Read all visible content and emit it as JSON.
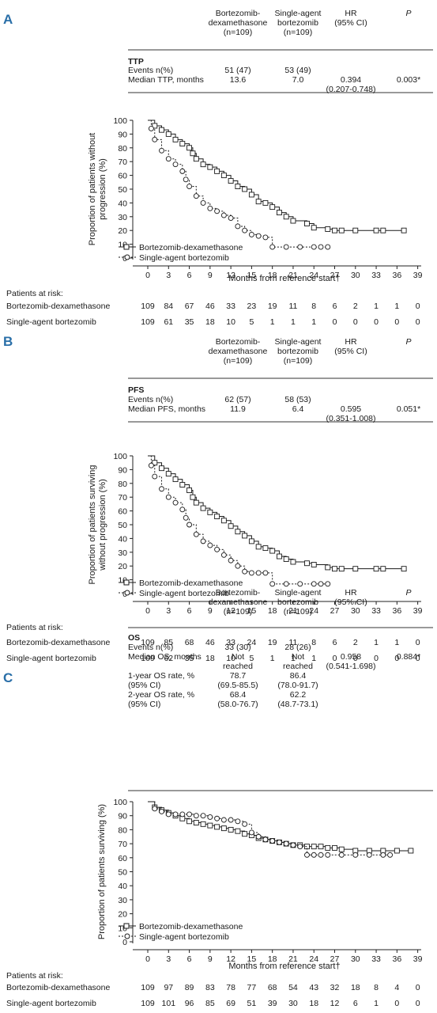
{
  "panels": [
    {
      "letter": "A",
      "table": {
        "headers": [
          [
            "Bortezomib-",
            "dexamethasone",
            "(n=109)"
          ],
          [
            "Single-agent",
            "bortezomib",
            "(n=109)"
          ],
          [
            "HR",
            "(95% CI)"
          ],
          [
            "P"
          ]
        ],
        "section": "TTP",
        "rows": [
          {
            "label": "Events n(%)",
            "c1": [
              "51 (47)"
            ],
            "c2": [
              "53 (49)"
            ],
            "hr": [
              ""
            ],
            "p": ""
          },
          {
            "label": "Median TTP, months",
            "c1": [
              "13.6"
            ],
            "c2": [
              "7.0"
            ],
            "hr": [
              "0.394",
              "(0.207-0.748)"
            ],
            "p": "0.003*"
          }
        ]
      },
      "chart_data": {
        "type": "line",
        "ylabel": "Proportion of patients without progression (%)",
        "xlabel": "Months from reference start†",
        "xticks": [
          0,
          3,
          6,
          9,
          12,
          15,
          18,
          21,
          24,
          27,
          30,
          33,
          36,
          39
        ],
        "yticks": [
          0,
          10,
          20,
          30,
          40,
          50,
          60,
          70,
          80,
          90,
          100
        ],
        "xlim": [
          -0.8,
          39.5
        ],
        "ylim": [
          0,
          100
        ],
        "series": [
          {
            "name": "Bortezomib-dexamethasone",
            "style": "solid",
            "marker": "square",
            "x": [
              0,
              1,
              2,
              3,
              4,
              5,
              6,
              6.5,
              7,
              8,
              9,
              10,
              11,
              12,
              13,
              14,
              15,
              16,
              17,
              18,
              19,
              20,
              21,
              23,
              24,
              26,
              27,
              28,
              30,
              33,
              34,
              37
            ],
            "y": [
              100,
              96,
              93,
              90,
              86,
              83,
              80,
              76,
              72,
              68,
              66,
              63,
              60,
              56,
              52,
              50,
              46,
              41,
              40,
              37,
              33,
              30,
              27,
              25,
              22,
              21,
              20,
              20,
              20,
              20,
              20,
              20
            ]
          },
          {
            "name": "Single-agent bortezomib",
            "style": "dotted",
            "marker": "circle",
            "x": [
              0,
              0.5,
              1,
              2,
              3,
              4,
              5,
              5.5,
              6,
              7,
              8,
              9,
              10,
              11,
              12,
              13,
              14,
              15,
              16,
              17,
              18,
              20,
              22,
              24,
              25,
              26
            ],
            "y": [
              100,
              94,
              86,
              78,
              72,
              68,
              63,
              57,
              52,
              45,
              40,
              36,
              34,
              31,
              29,
              23,
              20,
              17,
              16,
              15,
              8,
              8,
              8,
              8,
              8,
              8
            ]
          }
        ]
      },
      "risk": {
        "title": "Patients at risk:",
        "rows": [
          {
            "label": "Bortezomib-dexamethasone",
            "values": [
              "109",
              "84",
              "67",
              "46",
              "33",
              "23",
              "19",
              "11",
              "8",
              "6",
              "2",
              "1",
              "1",
              "0"
            ]
          },
          {
            "label": "Single-agent bortezomib",
            "values": [
              "109",
              "61",
              "35",
              "18",
              "10",
              "5",
              "1",
              "1",
              "1",
              "0",
              "0",
              "0",
              "0",
              "0"
            ]
          }
        ]
      }
    },
    {
      "letter": "B",
      "table": {
        "headers": [
          [
            "Bortezomib-",
            "dexamethasone",
            "(n=109)"
          ],
          [
            "Single-agent",
            "bortezomib",
            "(n=109)"
          ],
          [
            "HR",
            "(95% CI)"
          ],
          [
            "P"
          ]
        ],
        "section": "PFS",
        "rows": [
          {
            "label": "Events n(%)",
            "c1": [
              "62 (57)"
            ],
            "c2": [
              "58 (53)"
            ],
            "hr": [
              ""
            ],
            "p": ""
          },
          {
            "label": "Median PFS, months",
            "c1": [
              "11.9"
            ],
            "c2": [
              "6.4"
            ],
            "hr": [
              "0.595",
              "(0.351-1.008)"
            ],
            "p": "0.051*"
          }
        ]
      },
      "chart_data": {
        "type": "line",
        "ylabel": "Proportion of patients surviving without progression (%)",
        "xlabel": "",
        "xticks": [
          0,
          3,
          6,
          9,
          12,
          15,
          18,
          21,
          24,
          27,
          30,
          33,
          36,
          39
        ],
        "yticks": [
          0,
          10,
          20,
          30,
          40,
          50,
          60,
          70,
          80,
          90,
          100
        ],
        "xlim": [
          -0.8,
          39.5
        ],
        "ylim": [
          0,
          100
        ],
        "series": [
          {
            "name": "Bortezomib-dexamethasone",
            "style": "solid",
            "marker": "square",
            "x": [
              0,
              1,
              2,
              3,
              4,
              5,
              6,
              6.5,
              7,
              8,
              9,
              10,
              11,
              12,
              13,
              14,
              15,
              16,
              17,
              18,
              19,
              20,
              21,
              23,
              24,
              26,
              27,
              28,
              30,
              33,
              34,
              37
            ],
            "y": [
              100,
              95,
              91,
              87,
              83,
              79,
              75,
              70,
              66,
              62,
              59,
              56,
              53,
              49,
              45,
              42,
              38,
              34,
              33,
              31,
              27,
              25,
              23,
              22,
              21,
              19,
              18,
              18,
              18,
              18,
              18,
              18
            ]
          },
          {
            "name": "Single-agent bortezomib",
            "style": "dotted",
            "marker": "circle",
            "x": [
              0,
              0.5,
              1,
              2,
              3,
              4,
              5,
              5.5,
              6,
              7,
              8,
              9,
              10,
              11,
              12,
              13,
              14,
              15,
              16,
              17,
              18,
              20,
              22,
              24,
              25,
              26
            ],
            "y": [
              100,
              93,
              85,
              76,
              70,
              66,
              61,
              55,
              50,
              43,
              38,
              35,
              32,
              28,
              24,
              20,
              16,
              15,
              15,
              15,
              7,
              7,
              7,
              7,
              7,
              7
            ]
          }
        ]
      },
      "risk": {
        "title": "Patients at risk:",
        "rows": [
          {
            "label": "Bortezomib-dexamethasone",
            "values": [
              "109",
              "85",
              "68",
              "46",
              "33",
              "24",
              "19",
              "11",
              "8",
              "6",
              "2",
              "1",
              "1",
              "0"
            ]
          },
          {
            "label": "Single-agent bortezomib",
            "values": [
              "109",
              "62",
              "35",
              "18",
              "10",
              "5",
              "1",
              "1",
              "1",
              "0",
              "0",
              "0",
              "0",
              "0"
            ]
          }
        ]
      }
    },
    {
      "letter": "C",
      "table": {
        "headers": [
          [
            "Bortezomib-",
            "dexamethasone",
            "(n=109)"
          ],
          [
            "Single-agent",
            "bortezomib",
            "(n=109)"
          ],
          [
            "HR",
            "(95% CI)"
          ],
          [
            "P"
          ]
        ],
        "section": "OS",
        "rows": [
          {
            "label": "Events n(%)",
            "c1": [
              "33 (30)"
            ],
            "c2": [
              "28 (26)"
            ],
            "hr": [
              ""
            ],
            "p": ""
          },
          {
            "label": "Median OS, months",
            "c1": [
              "Not",
              "reached"
            ],
            "c2": [
              "Not",
              "reached"
            ],
            "hr": [
              "0.958",
              "(0.541-1.698)"
            ],
            "p": "0.884*"
          },
          {
            "label": "1-year OS rate, %",
            "c1": [
              "78.7"
            ],
            "c2": [
              "86.4"
            ],
            "hr": [
              ""
            ],
            "p": ""
          },
          {
            "label": "(95% CI)",
            "c1": [
              "(69.5-85.5)"
            ],
            "c2": [
              "(78.0-91.7)"
            ],
            "hr": [
              ""
            ],
            "p": ""
          },
          {
            "label": "2-year OS rate, %",
            "c1": [
              "68.4"
            ],
            "c2": [
              "62.2"
            ],
            "hr": [
              ""
            ],
            "p": ""
          },
          {
            "label": "(95% CI)",
            "c1": [
              "(58.0-76.7)"
            ],
            "c2": [
              "(48.7-73.1)"
            ],
            "hr": [
              ""
            ],
            "p": ""
          }
        ]
      },
      "chart_data": {
        "type": "line",
        "ylabel": "Proportion of patients surviving (%)",
        "xlabel": "Months from reference start†",
        "xticks": [
          0,
          3,
          6,
          9,
          12,
          15,
          18,
          21,
          24,
          27,
          30,
          33,
          36,
          39
        ],
        "yticks": [
          0,
          10,
          20,
          30,
          40,
          50,
          60,
          70,
          80,
          90,
          100
        ],
        "xlim": [
          -0.8,
          39.5
        ],
        "ylim": [
          0,
          100
        ],
        "series": [
          {
            "name": "Bortezomib-dexamethasone",
            "style": "solid",
            "marker": "square",
            "x": [
              0,
              1,
              2,
              3,
              4,
              5,
              6,
              7,
              8,
              9,
              10,
              11,
              12,
              13,
              14,
              15,
              16,
              17,
              18,
              19,
              20,
              21,
              22,
              23,
              24,
              25,
              26,
              27,
              28,
              30,
              32,
              34,
              36,
              38
            ],
            "y": [
              100,
              96,
              94,
              92,
              90,
              88,
              86,
              85,
              84,
              83,
              82,
              81,
              80,
              79,
              77,
              76,
              74,
              73,
              72,
              71,
              70,
              69,
              69,
              68,
              68,
              68,
              67,
              67,
              66,
              65,
              65,
              65,
              65,
              65
            ]
          },
          {
            "name": "Single-agent bortezomib",
            "style": "dotted",
            "marker": "circle",
            "x": [
              0,
              1,
              2,
              3,
              4,
              5,
              6,
              7,
              8,
              9,
              10,
              11,
              12,
              13,
              14,
              15,
              16,
              17,
              18,
              19,
              20,
              21,
              22,
              23,
              24,
              25,
              26,
              28,
              30,
              32,
              34,
              35
            ],
            "y": [
              100,
              95,
              93,
              91,
              91,
              91,
              91,
              90,
              90,
              89,
              88,
              87,
              87,
              86,
              84,
              78,
              75,
              73,
              72,
              71,
              70,
              69,
              68,
              62,
              62,
              62,
              62,
              62,
              62,
              62,
              62,
              62
            ]
          }
        ]
      },
      "risk": {
        "title": "Patients at risk:",
        "rows": [
          {
            "label": "Bortezomib-dexamethasone",
            "values": [
              "109",
              "97",
              "89",
              "83",
              "78",
              "77",
              "68",
              "54",
              "43",
              "32",
              "18",
              "8",
              "4",
              "0"
            ]
          },
          {
            "label": "Single-agent bortezomib",
            "values": [
              "109",
              "101",
              "96",
              "85",
              "69",
              "51",
              "39",
              "30",
              "18",
              "12",
              "6",
              "1",
              "0",
              "0"
            ]
          }
        ]
      }
    }
  ]
}
